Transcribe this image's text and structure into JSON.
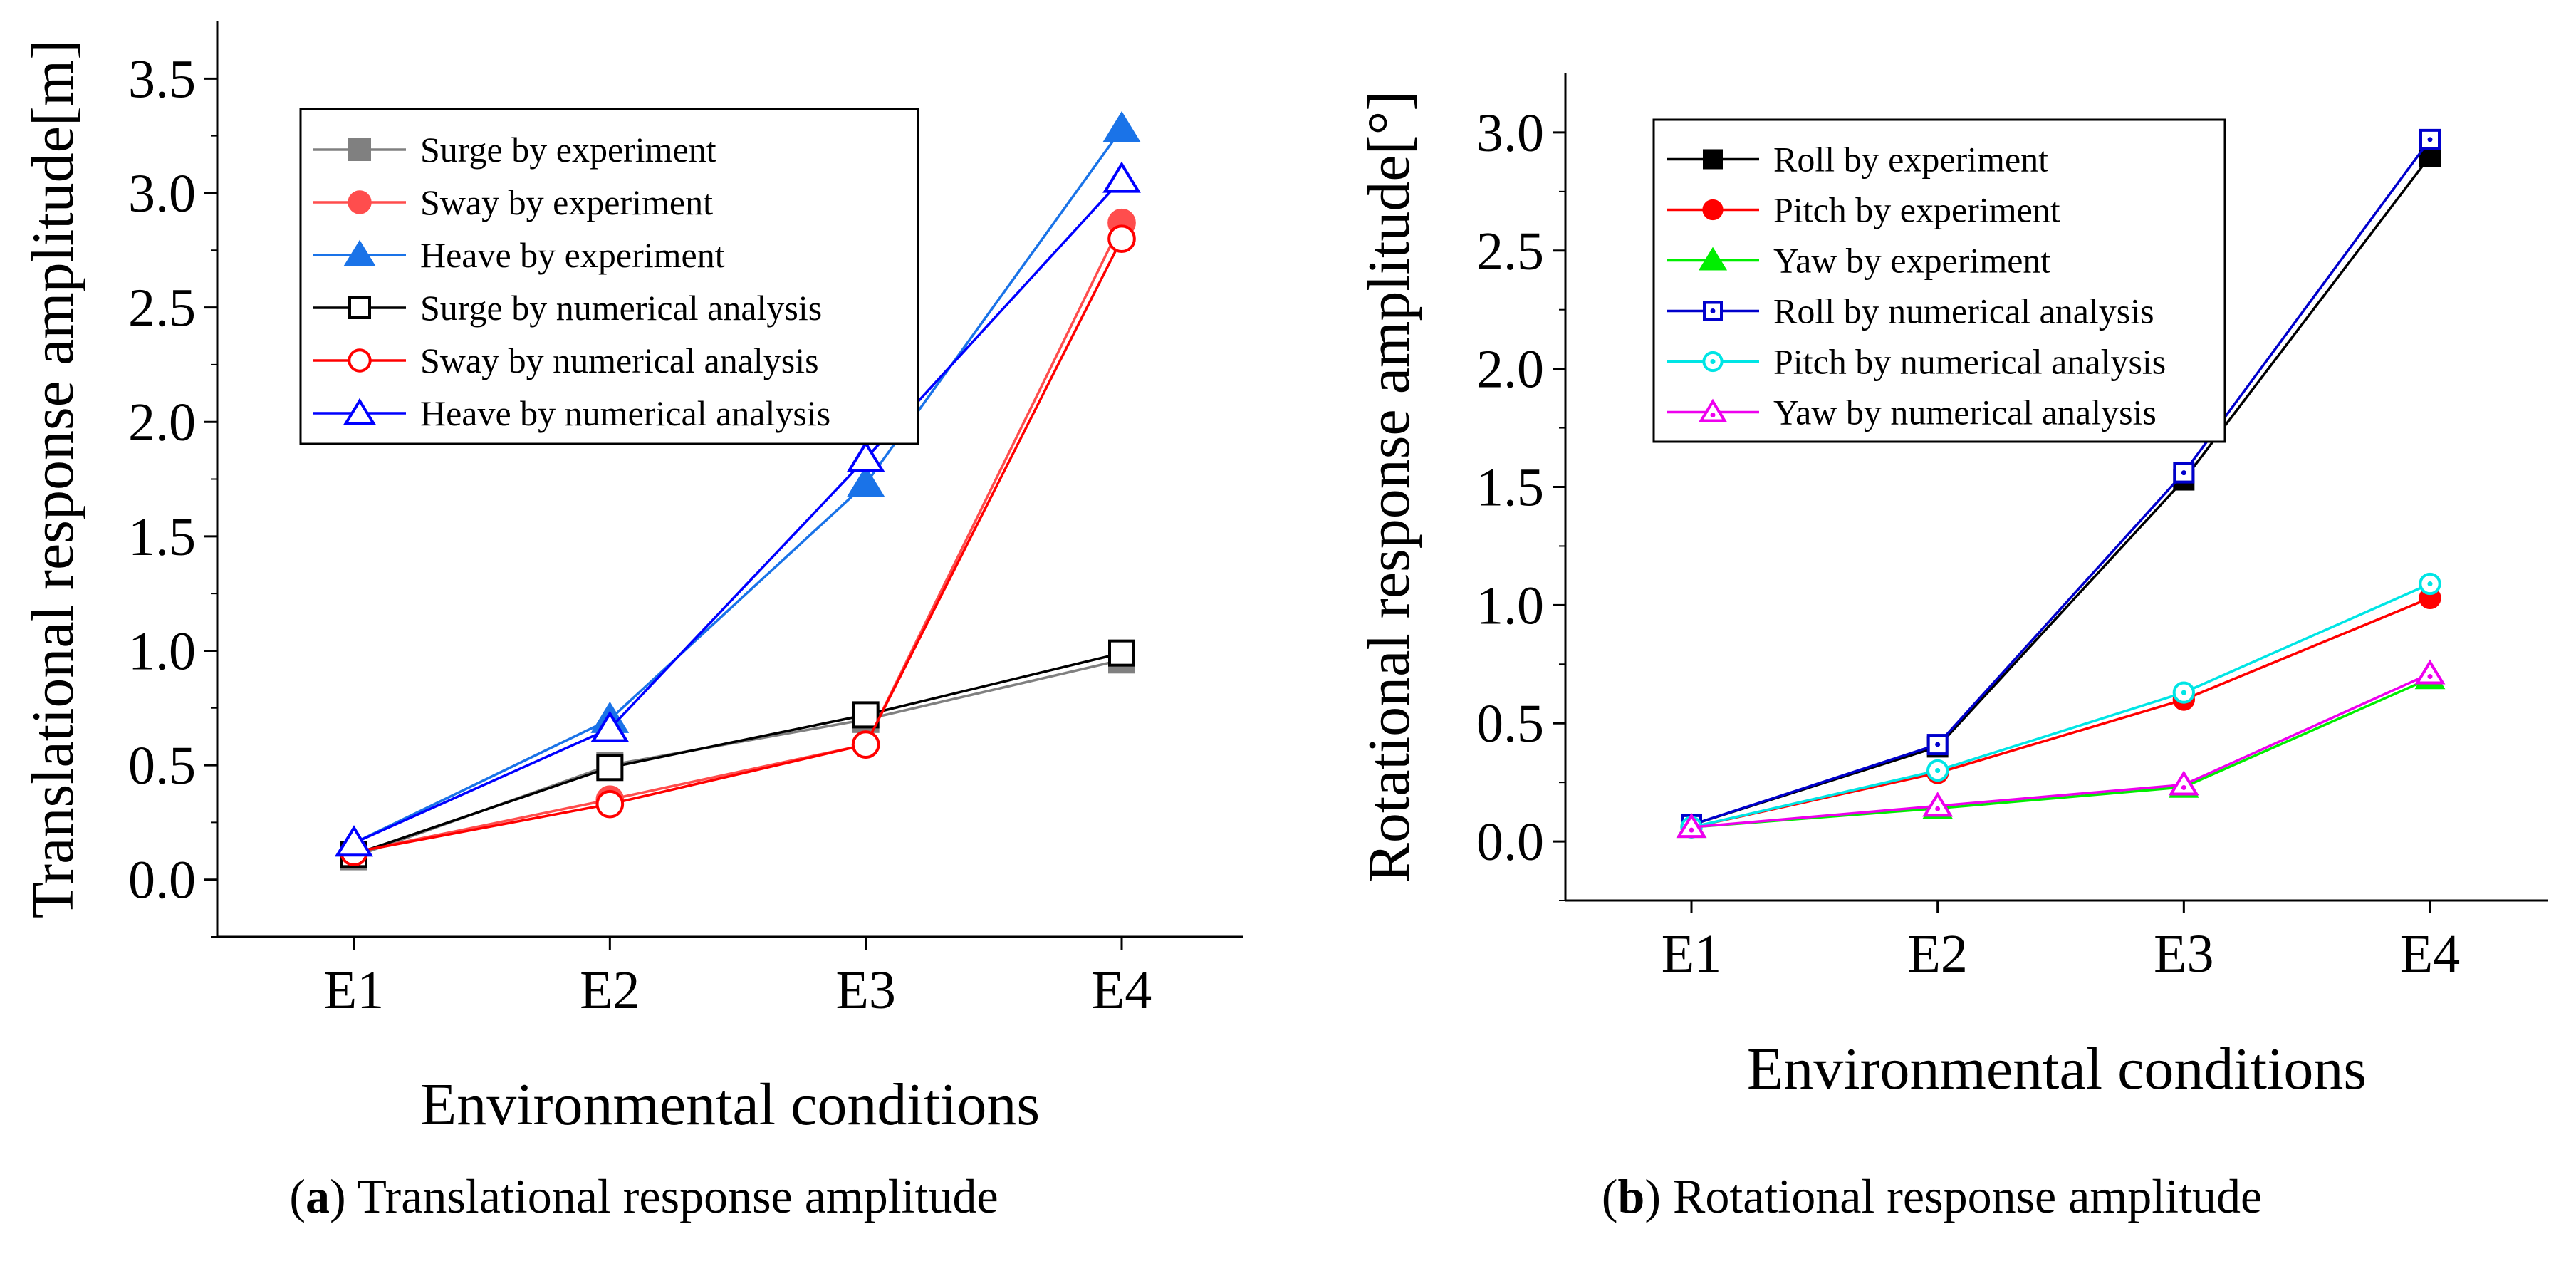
{
  "chart_data": [
    {
      "type": "line",
      "caption_tag": "a",
      "caption_text": "Translational response amplitude",
      "title": "",
      "xlabel": "Environmental conditions",
      "ylabel": "Translational response amplitude[m]",
      "categories": [
        "E1",
        "E2",
        "E3",
        "E4"
      ],
      "ylim": [
        -0.25,
        3.75
      ],
      "yticks": [
        "0.0",
        "0.5",
        "1.0",
        "1.5",
        "2.0",
        "2.5",
        "3.0",
        "3.5"
      ],
      "legend_position": "top-left",
      "series": [
        {
          "name": "Surge by experiment",
          "values": [
            0.1,
            0.5,
            0.7,
            0.96
          ],
          "color": "#808080",
          "marker": "square",
          "filled": true
        },
        {
          "name": "Sway by experiment",
          "values": [
            0.12,
            0.35,
            0.59,
            2.87
          ],
          "color": "#ff4d4d",
          "marker": "circle",
          "filled": true
        },
        {
          "name": "Heave by experiment",
          "values": [
            0.16,
            0.7,
            1.73,
            3.28
          ],
          "color": "#1a73e8",
          "marker": "triangle",
          "filled": true
        },
        {
          "name": "Surge by numerical analysis",
          "values": [
            0.11,
            0.49,
            0.72,
            0.99
          ],
          "color": "#000000",
          "marker": "square",
          "filled": false
        },
        {
          "name": "Sway by numerical analysis",
          "values": [
            0.12,
            0.33,
            0.59,
            2.8
          ],
          "color": "#ff0000",
          "marker": "circle",
          "filled": false
        },
        {
          "name": "Heave by numerical analysis",
          "values": [
            0.16,
            0.66,
            1.84,
            3.06
          ],
          "color": "#0000ff",
          "marker": "triangle",
          "filled": false
        }
      ]
    },
    {
      "type": "line",
      "caption_tag": "b",
      "caption_text": "Rotational response amplitude",
      "title": "",
      "xlabel": "Environmental conditions",
      "ylabel": "Rotational response amplitude[°]",
      "categories": [
        "E1",
        "E2",
        "E3",
        "E4"
      ],
      "ylim": [
        -0.25,
        3.25
      ],
      "yticks": [
        "0.0",
        "0.5",
        "1.0",
        "1.5",
        "2.0",
        "2.5",
        "3.0"
      ],
      "legend_position": "top-left",
      "series": [
        {
          "name": "Roll by experiment",
          "values": [
            0.07,
            0.4,
            1.53,
            2.9
          ],
          "color": "#000000",
          "marker": "square",
          "filled": true
        },
        {
          "name": "Pitch by experiment",
          "values": [
            0.06,
            0.29,
            0.6,
            1.03
          ],
          "color": "#ff0000",
          "marker": "circle",
          "filled": true
        },
        {
          "name": "Yaw by experiment",
          "values": [
            0.06,
            0.14,
            0.23,
            0.69
          ],
          "color": "#00ee00",
          "marker": "triangle",
          "filled": true
        },
        {
          "name": "Roll by numerical analysis",
          "values": [
            0.07,
            0.41,
            1.56,
            2.97
          ],
          "color": "#0000cc",
          "marker": "square-dot",
          "filled": false
        },
        {
          "name": "Pitch by numerical analysis",
          "values": [
            0.06,
            0.3,
            0.63,
            1.09
          ],
          "color": "#00e5e5",
          "marker": "circle-dot",
          "filled": false
        },
        {
          "name": "Yaw by numerical analysis",
          "values": [
            0.06,
            0.15,
            0.24,
            0.71
          ],
          "color": "#ee00ee",
          "marker": "triangle-dot",
          "filled": false
        }
      ]
    }
  ]
}
